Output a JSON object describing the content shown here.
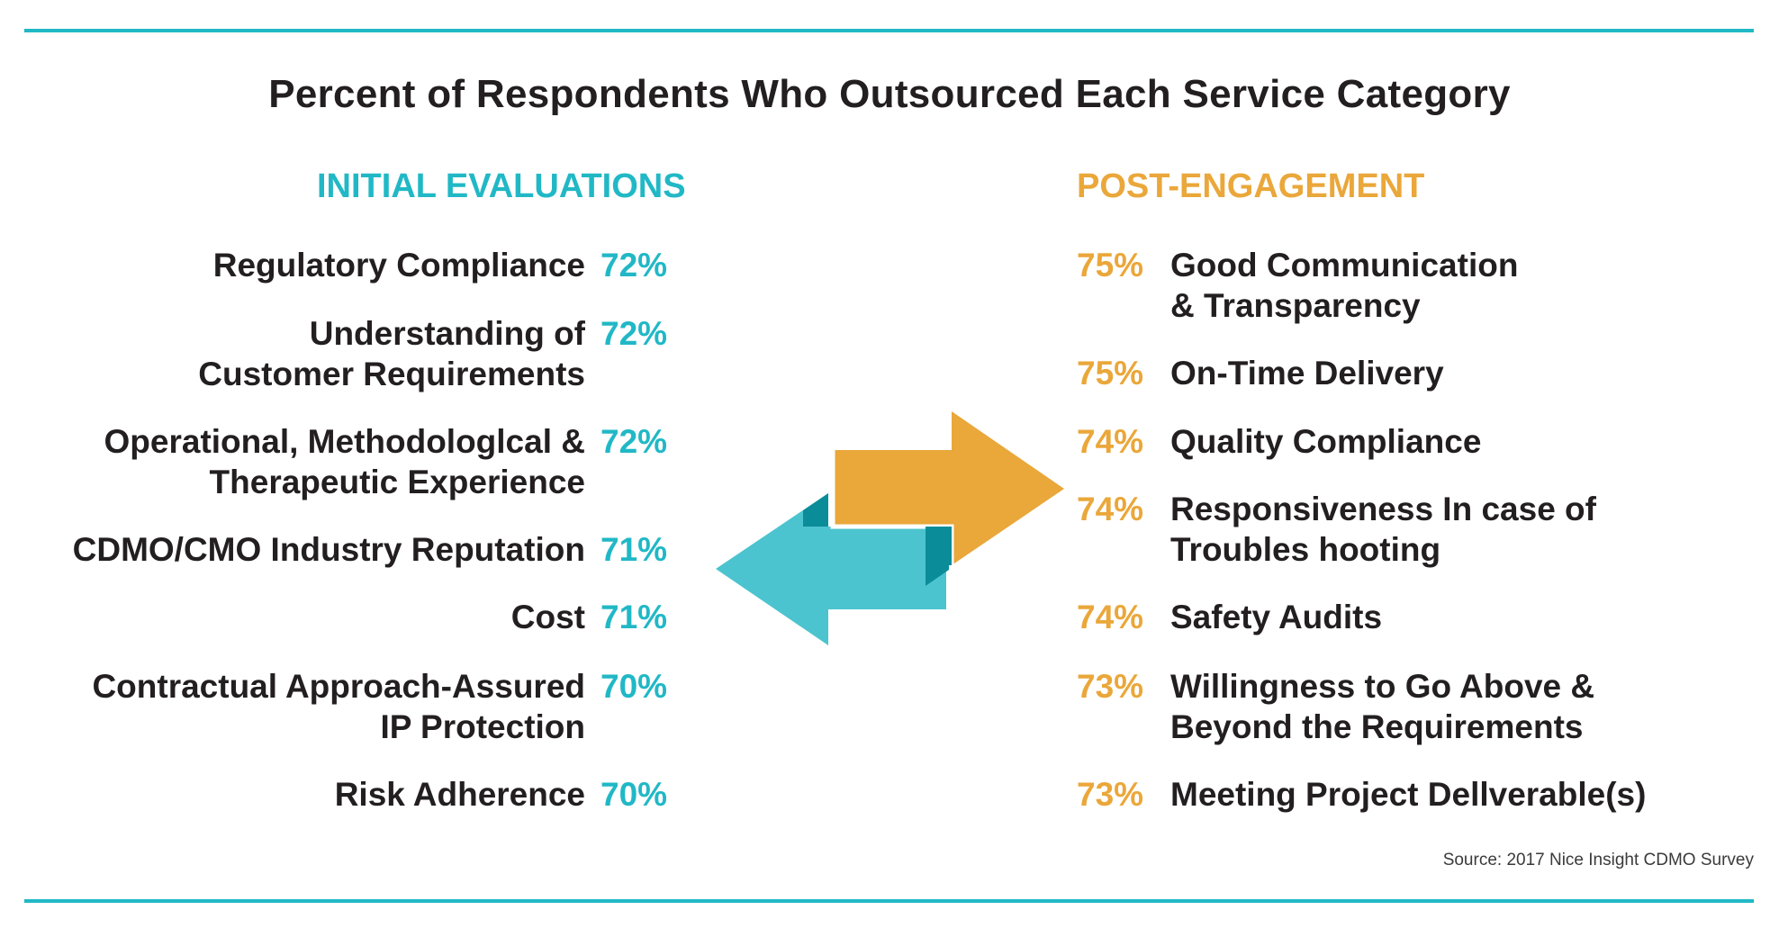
{
  "title": "Percent of Respondents Who Outsourced Each Service Category",
  "colors": {
    "teal": "#21b8c6",
    "orange": "#eaa73a",
    "dark_teal": "#0b8c99",
    "text": "#231f20"
  },
  "chart_data": {
    "type": "table",
    "title": "Percent of Respondents Who Outsourced Each Service Category",
    "groups": [
      {
        "name": "INITIAL EVALUATIONS",
        "items": [
          {
            "label": "Regulatory Compliance",
            "value": "72%"
          },
          {
            "label": "Understanding of\nCustomer Requirements",
            "value": "72%"
          },
          {
            "label": "Operational, Methodologlcal &\nTherapeutic Experience",
            "value": "72%"
          },
          {
            "label": "CDMO/CMO Industry Reputation",
            "value": "71%"
          },
          {
            "label": "Cost",
            "value": "71%"
          },
          {
            "label": "Contractual Approach-Assured\nIP Protection",
            "value": "70%"
          },
          {
            "label": "Risk Adherence",
            "value": "70%"
          }
        ]
      },
      {
        "name": "POST-ENGAGEMENT",
        "items": [
          {
            "label": "Good Communication\n& Transparency",
            "value": "75%"
          },
          {
            "label": "On-Time Delivery",
            "value": "75%"
          },
          {
            "label": "Quality Compliance",
            "value": "74%"
          },
          {
            "label": "Responsiveness In case of\nTroubles hooting",
            "value": "74%"
          },
          {
            "label": "Safety Audits",
            "value": "74%"
          },
          {
            "label": "Willingness to Go Above &\nBeyond the Requirements",
            "value": "73%"
          },
          {
            "label": "Meeting Project Dellverable(s)",
            "value": "73%"
          }
        ]
      }
    ]
  },
  "source": "Source:  2017 Nice Insight CDMO Survey",
  "icons": [
    "exchange-arrows-icon"
  ]
}
